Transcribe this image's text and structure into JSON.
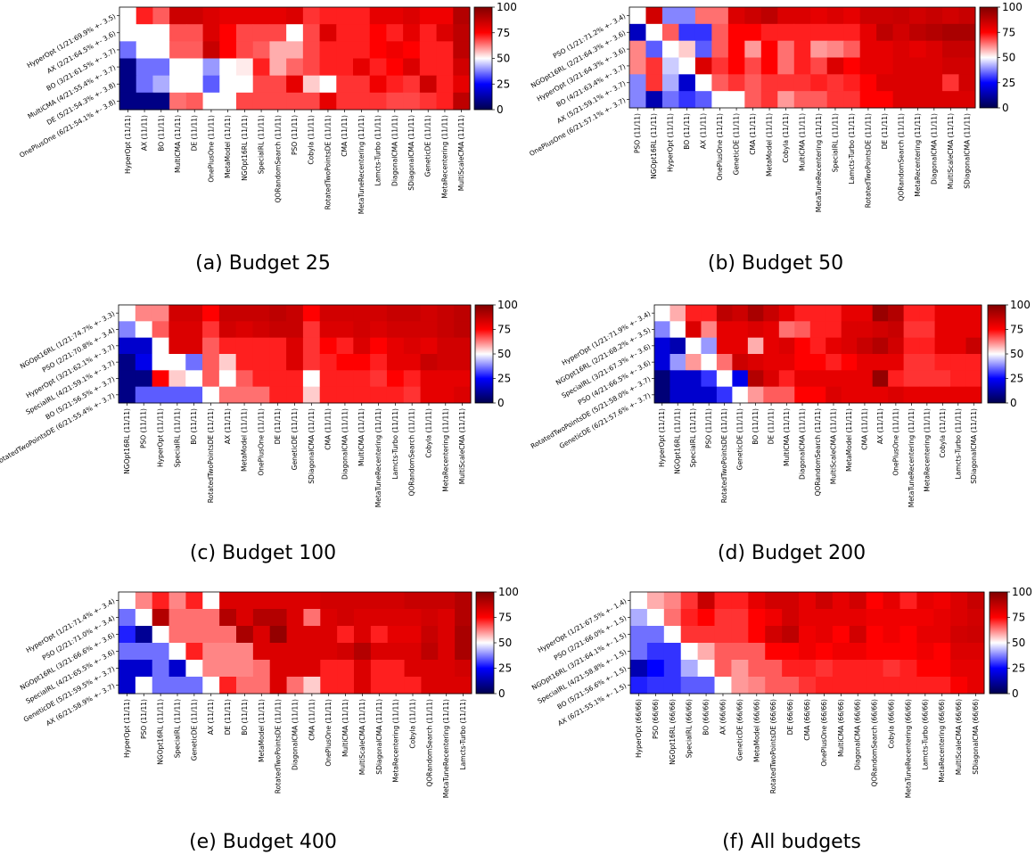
{
  "colorbar": {
    "ticks": [
      "0",
      "25",
      "50",
      "75",
      "100"
    ],
    "range": [
      0,
      100
    ],
    "colors": {
      "low": "#00004c",
      "mid": "#ffffff",
      "high": "#800000",
      "blue": "#0000ff",
      "red": "#ff0000"
    }
  },
  "chart_data": [
    {
      "type": "heatmap",
      "caption": "(a) Budget 25",
      "row_labels": [
        "HyperOpt (1/21:69.9% +- 3.5)",
        "AX (2/21:64.5% +- 3.6)",
        "BO (3/21:61.5% +- 3.7)",
        "MultiCMA (4/21:55.4% +- 3.7)",
        "DE (5/21:54.3% +- 3.8)",
        "OnePlusOne (6/21:54.1% +- 3.8)"
      ],
      "col_labels": [
        "HyperOpt (11/11)",
        "AX (11/11)",
        "BO (11/11)",
        "MultiCMA (11/11)",
        "DE (11/11)",
        "OnePlusOne (11/11)",
        "MetaModel (11/11)",
        "NGOpt16RL (11/11)",
        "SpecialRL (11/11)",
        "QORandomSearch (11/11)",
        "PSO (11/11)",
        "Cobyla (11/11)",
        "RotatedTwoPointsDE (11/11)",
        "CMA (11/11)",
        "MetaTuneRecentering (11/11)",
        "Lamcts-Turbo (11/11)",
        "DiagonalCMA (11/11)",
        "SDiagonalCMA (11/11)",
        "GeneticDE (11/11)",
        "MetaRecentering (11/11)",
        "MultiScaleCMA (11/11)"
      ],
      "values": [
        [
          50,
          72,
          66,
          85,
          85,
          82,
          80,
          80,
          80,
          80,
          82,
          70,
          72,
          72,
          72,
          80,
          80,
          82,
          78,
          78,
          90
        ],
        [
          50,
          50,
          50,
          67,
          67,
          82,
          75,
          68,
          68,
          68,
          50,
          68,
          82,
          72,
          72,
          75,
          72,
          80,
          72,
          82,
          88
        ],
        [
          36,
          50,
          50,
          66,
          66,
          86,
          75,
          68,
          66,
          58,
          58,
          68,
          72,
          72,
          72,
          75,
          78,
          75,
          72,
          72,
          88
        ],
        [
          8,
          36,
          36,
          50,
          50,
          40,
          50,
          52,
          72,
          58,
          65,
          68,
          72,
          72,
          80,
          72,
          75,
          82,
          72,
          72,
          84
        ],
        [
          8,
          36,
          42,
          50,
          50,
          34,
          50,
          50,
          68,
          68,
          80,
          55,
          50,
          70,
          70,
          78,
          72,
          70,
          85,
          72,
          80
        ],
        [
          8,
          8,
          8,
          64,
          66,
          50,
          50,
          68,
          68,
          68,
          68,
          68,
          80,
          70,
          70,
          70,
          68,
          68,
          70,
          72,
          88
        ]
      ]
    },
    {
      "type": "heatmap",
      "caption": "(b) Budget 50",
      "row_labels": [
        "PSO (1/21:71.2% +- 3.4)",
        "NGOpt16RL (2/21:64.3% +- 3.6)",
        "HyperOpt (3/21:64.3% +- 3.6)",
        "BO (4/21:63.4% +- 3.7)",
        "AX (5/21:59.1% +- 3.7)",
        "OnePlusOne (6/21:57.1% +- 3.7)"
      ],
      "col_labels": [
        "PSO (11/11)",
        "NGOpt16RL (11/11)",
        "HyperOpt (11/11)",
        "BO (11/11)",
        "AX (11/11)",
        "OnePlusOne (11/11)",
        "GeneticDE (11/11)",
        "CMA (11/11)",
        "MetaModel (11/11)",
        "Cobyla (11/11)",
        "MultiCMA (11/11)",
        "MetaTuneRecentering (11/11)",
        "SpecialRL (11/11)",
        "Lamcts-Turbo (11/11)",
        "RotatedTwoPointsDE (11/11)",
        "DE (11/11)",
        "QORandomSearch (11/11)",
        "MetaRecentering (11/11)",
        "DiagonalCMA (11/11)",
        "MultiScaleCMA (11/11)",
        "SDiagonalCMA (11/11)"
      ],
      "values": [
        [
          50,
          84,
          38,
          38,
          64,
          64,
          82,
          85,
          88,
          82,
          82,
          80,
          82,
          80,
          85,
          85,
          86,
          84,
          86,
          84,
          86
        ],
        [
          16,
          50,
          66,
          30,
          30,
          66,
          75,
          75,
          72,
          72,
          72,
          72,
          72,
          72,
          80,
          88,
          84,
          88,
          90,
          92,
          92
        ],
        [
          62,
          34,
          50,
          55,
          34,
          66,
          75,
          60,
          75,
          64,
          72,
          60,
          62,
          66,
          80,
          80,
          82,
          80,
          82,
          86,
          86
        ],
        [
          62,
          70,
          45,
          50,
          82,
          70,
          75,
          68,
          75,
          64,
          72,
          68,
          82,
          75,
          80,
          80,
          82,
          82,
          82,
          84,
          84
        ],
        [
          38,
          70,
          42,
          18,
          50,
          66,
          70,
          66,
          70,
          70,
          70,
          72,
          70,
          72,
          75,
          82,
          82,
          82,
          82,
          70,
          84
        ],
        [
          38,
          14,
          36,
          30,
          34,
          50,
          50,
          66,
          70,
          60,
          66,
          66,
          70,
          70,
          75,
          75,
          82,
          82,
          82,
          82,
          82
        ]
      ]
    },
    {
      "type": "heatmap",
      "caption": "(c) Budget 100",
      "row_labels": [
        "NGOpt16RL (1/21:74.7% +- 3.3)",
        "PSO (2/21:70.8% +- 3.4)",
        "HyperOpt (3/21:62.1% +- 3.7)",
        "SpecialRL (4/21:59.1% +- 3.7)",
        "BO (5/21:56.5% +- 3.7)",
        "RotatedTwoPointsDE (6/21:55.4% +- 3.7)"
      ],
      "col_labels": [
        "NGOpt16RL (11/11)",
        "PSO (11/11)",
        "HyperOpt (11/11)",
        "SpecialRL (11/11)",
        "BO (11/11)",
        "RotatedTwoPointsDE (11/11)",
        "AX (11/11)",
        "MetaModel (11/11)",
        "OnePlusOne (11/11)",
        "DE (11/11)",
        "GeneticDE (11/11)",
        "SDiagonalCMA (11/11)",
        "CMA (11/11)",
        "DiagonalCMA (11/11)",
        "MultiCMA (11/11)",
        "MetaTuneRecentering (11/11)",
        "Lamcts-Turbo (11/11)",
        "QORandomSearch (11/11)",
        "Cobyla (11/11)",
        "MetaRecentering (11/11)",
        "MultiScaleCMA (11/11)"
      ],
      "values": [
        [
          50,
          62,
          62,
          84,
          84,
          75,
          86,
          86,
          86,
          88,
          86,
          75,
          84,
          84,
          84,
          84,
          86,
          86,
          84,
          86,
          88
        ],
        [
          38,
          50,
          66,
          82,
          82,
          70,
          84,
          82,
          84,
          86,
          86,
          70,
          82,
          82,
          84,
          82,
          84,
          84,
          84,
          86,
          88
        ],
        [
          18,
          18,
          50,
          82,
          82,
          66,
          72,
          72,
          72,
          72,
          82,
          70,
          75,
          72,
          82,
          75,
          80,
          82,
          80,
          84,
          84
        ],
        [
          8,
          22,
          50,
          50,
          36,
          66,
          55,
          72,
          72,
          72,
          82,
          70,
          72,
          75,
          75,
          72,
          80,
          80,
          86,
          84,
          84
        ],
        [
          8,
          8,
          75,
          55,
          50,
          66,
          50,
          66,
          72,
          72,
          72,
          50,
          72,
          72,
          72,
          70,
          75,
          72,
          80,
          80,
          80
        ],
        [
          8,
          34,
          34,
          34,
          34,
          50,
          64,
          64,
          64,
          72,
          72,
          55,
          72,
          72,
          72,
          72,
          72,
          70,
          80,
          80,
          82
        ]
      ]
    },
    {
      "type": "heatmap",
      "caption": "(d) Budget 200",
      "row_labels": [
        "HyperOpt (1/21:71.9% +- 3.4)",
        "NGOpt16RL (2/21:68.2% +- 3.5)",
        "SpecialRL (3/21:67.3% +- 3.6)",
        "PSO (4/21:66.5% +- 3.6)",
        "RotatedTwoPointsDE (5/21:58.0% +- 3.7)",
        "GeneticDE (6/21:57.6% +- 3.7)"
      ],
      "col_labels": [
        "HyperOpt (11/11)",
        "NGOpt16RL (11/11)",
        "SpecialRL (11/11)",
        "PSO (11/11)",
        "RotatedTwoPointsDE (11/11)",
        "GeneticDE (11/11)",
        "BO (11/11)",
        "DE (11/11)",
        "MultiCMA (11/11)",
        "DiagonalCMA (11/11)",
        "QORandomSearch (11/11)",
        "MultiScaleCMA (11/11)",
        "MetaModel (11/11)",
        "CMA (11/11)",
        "AX (11/11)",
        "OnePlusOne (11/11)",
        "MetaTuneRecentering (11/11)",
        "MetaRecentering (11/11)",
        "Cobyla (11/11)",
        "Lamcts-Turbo (11/11)",
        "SDiagonalCMA (11/11)"
      ],
      "values": [
        [
          50,
          58,
          72,
          72,
          88,
          85,
          92,
          86,
          80,
          72,
          72,
          72,
          80,
          80,
          95,
          90,
          72,
          72,
          80,
          80,
          80
        ],
        [
          38,
          50,
          82,
          62,
          80,
          80,
          82,
          80,
          64,
          66,
          72,
          72,
          82,
          82,
          84,
          86,
          70,
          70,
          80,
          80,
          80
        ],
        [
          20,
          14,
          50,
          40,
          80,
          80,
          58,
          80,
          82,
          75,
          72,
          80,
          82,
          86,
          90,
          84,
          72,
          72,
          80,
          80,
          86
        ],
        [
          20,
          40,
          60,
          50,
          64,
          85,
          82,
          80,
          80,
          75,
          75,
          72,
          75,
          80,
          80,
          80,
          70,
          70,
          72,
          72,
          72
        ],
        [
          6,
          18,
          18,
          30,
          50,
          22,
          90,
          82,
          72,
          80,
          80,
          80,
          80,
          80,
          96,
          72,
          70,
          70,
          70,
          72,
          72
        ],
        [
          6,
          18,
          18,
          18,
          30,
          50,
          60,
          66,
          66,
          75,
          75,
          82,
          80,
          80,
          80,
          82,
          80,
          80,
          80,
          80,
          80
        ]
      ]
    },
    {
      "type": "heatmap",
      "caption": "(e) Budget 400",
      "row_labels": [
        "HyperOpt (1/21:71.4% +- 3.4)",
        "PSO (2/21:71.0% +- 3.4)",
        "NGOpt16RL (3/21:66.6% +- 3.6)",
        "SpecialRL (4/21:65.5% +- 3.6)",
        "GeneticDE (5/21:59.5% +- 3.7)",
        "AX (6/21:58.9% +- 3.7)"
      ],
      "col_labels": [
        "HyperOpt (11/11)",
        "PSO (11/11)",
        "NGOpt16RL (11/11)",
        "SpecialRL (11/11)",
        "GeneticDE (11/11)",
        "AX (11/11)",
        "DE (11/11)",
        "BO (11/11)",
        "MetaModel (11/11)",
        "RotatedTwoPointsDE (11/11)",
        "DiagonalCMA (11/11)",
        "CMA (11/11)",
        "OnePlusOne (11/11)",
        "MultiCMA (11/11)",
        "MultiScaleCMA (11/11)",
        "SDiagonalCMA (11/11)",
        "MetaRecentering (11/11)",
        "Cobyla (11/11)",
        "QORandomSearch (11/11)",
        "MetaTuneRecentering (11/11)",
        "Lamcts-Turbo (11/11)"
      ],
      "values": [
        [
          50,
          62,
          72,
          62,
          72,
          50,
          82,
          82,
          82,
          82,
          82,
          82,
          84,
          84,
          84,
          84,
          84,
          86,
          86,
          86,
          90
        ],
        [
          36,
          50,
          90,
          64,
          64,
          64,
          90,
          82,
          90,
          90,
          82,
          64,
          82,
          84,
          82,
          82,
          82,
          82,
          84,
          82,
          90
        ],
        [
          28,
          10,
          50,
          64,
          64,
          64,
          64,
          92,
          82,
          96,
          82,
          82,
          82,
          72,
          82,
          72,
          80,
          80,
          86,
          82,
          92
        ],
        [
          36,
          36,
          36,
          50,
          72,
          62,
          62,
          62,
          82,
          82,
          82,
          82,
          82,
          84,
          90,
          82,
          82,
          82,
          88,
          82,
          92
        ],
        [
          18,
          18,
          36,
          18,
          50,
          62,
          62,
          62,
          64,
          82,
          82,
          82,
          72,
          72,
          82,
          72,
          72,
          82,
          82,
          82,
          84
        ],
        [
          18,
          50,
          36,
          36,
          36,
          50,
          72,
          64,
          64,
          82,
          64,
          55,
          72,
          72,
          82,
          72,
          72,
          72,
          82,
          82,
          82
        ]
      ]
    },
    {
      "type": "heatmap",
      "caption": "(f) All budgets",
      "row_labels": [
        "HyperOpt (1/21:67.5% +- 1.4)",
        "PSO (2/21:66.0% +- 1.5)",
        "NGOpt16RL (3/21:64.1% +- 1.5)",
        "SpecialRL (4/21:58.8% +- 1.5)",
        "BO (5/21:56.6% +- 1.5)",
        "AX (6/21:55.1% +- 1.5)"
      ],
      "col_labels": [
        "HyperOpt (66/66)",
        "PSO (66/66)",
        "NGOpt16RL (66/66)",
        "SpecialRL (66/66)",
        "BO (66/66)",
        "AX (66/66)",
        "GeneticDE (66/66)",
        "MetaModel (66/66)",
        "RotatedTwoPointsDE (66/66)",
        "DE (66/66)",
        "CMA (66/66)",
        "OnePlusOne (66/66)",
        "MultiCMA (66/66)",
        "DiagonalCMA (66/66)",
        "QORandomSearch (66/66)",
        "Cobyla (66/66)",
        "MetaTuneRecentering (66/66)",
        "Lamcts-Turbo (66/66)",
        "MetaRecentering (66/66)",
        "MultiScaleCMA (66/66)",
        "SDiagonalCMA (66/66)"
      ],
      "values": [
        [
          50,
          58,
          62,
          70,
          86,
          72,
          72,
          80,
          84,
          84,
          80,
          85,
          80,
          84,
          75,
          80,
          72,
          80,
          78,
          82,
          86
        ],
        [
          42,
          50,
          64,
          72,
          75,
          70,
          70,
          75,
          78,
          84,
          80,
          80,
          80,
          80,
          78,
          78,
          78,
          78,
          80,
          82,
          84
        ],
        [
          36,
          36,
          50,
          70,
          70,
          70,
          70,
          75,
          84,
          88,
          78,
          80,
          75,
          84,
          75,
          78,
          75,
          80,
          80,
          84,
          85
        ],
        [
          36,
          30,
          30,
          50,
          58,
          66,
          66,
          66,
          75,
          75,
          78,
          75,
          78,
          78,
          75,
          75,
          75,
          78,
          75,
          82,
          82
        ],
        [
          14,
          25,
          30,
          42,
          50,
          66,
          60,
          66,
          66,
          72,
          72,
          70,
          72,
          72,
          72,
          70,
          72,
          75,
          75,
          80,
          80
        ],
        [
          28,
          30,
          30,
          34,
          34,
          50,
          60,
          62,
          66,
          66,
          70,
          72,
          72,
          72,
          72,
          72,
          72,
          72,
          72,
          76,
          80
        ]
      ]
    }
  ]
}
